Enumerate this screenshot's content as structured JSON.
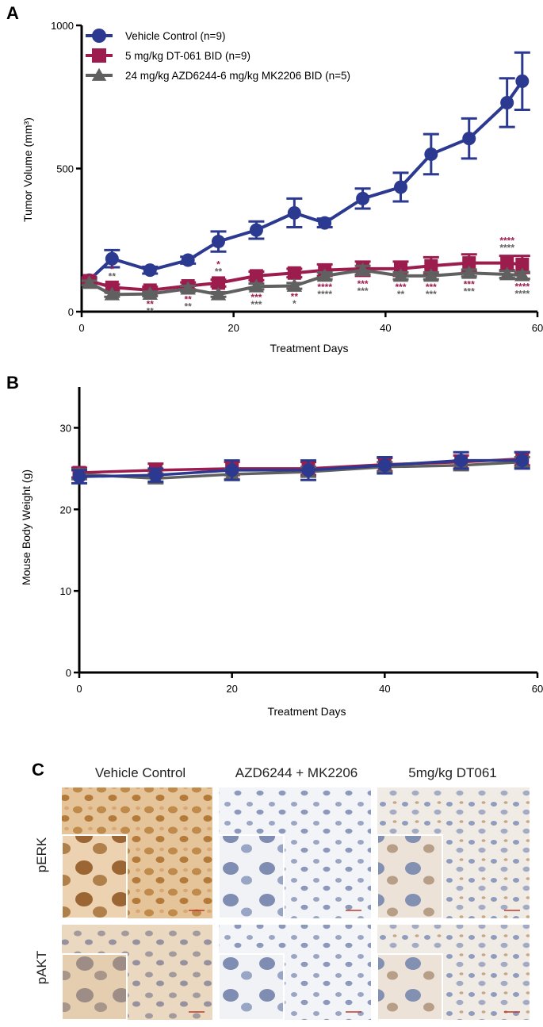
{
  "chart_data": [
    {
      "panel": "A",
      "type": "line",
      "xlabel": "Treatment Days",
      "ylabel": "Tumor Volume (mm³)",
      "xlim": [
        0,
        60
      ],
      "ylim": [
        0,
        1000
      ],
      "xticks": [
        0,
        20,
        40,
        60
      ],
      "yticks": [
        0,
        500,
        1000
      ],
      "grid": false,
      "legend_position": "top-left",
      "series": [
        {
          "name": "Vehicle Control (n=9)",
          "color": "#2b3990",
          "marker": "circle",
          "x": [
            1,
            4,
            9,
            14,
            18,
            23,
            28,
            32,
            37,
            42,
            46,
            51,
            56,
            58
          ],
          "y": [
            110,
            185,
            145,
            180,
            245,
            285,
            345,
            310,
            395,
            435,
            550,
            605,
            730,
            805
          ],
          "err": [
            10,
            30,
            12,
            12,
            35,
            30,
            50,
            15,
            35,
            50,
            70,
            70,
            85,
            100
          ]
        },
        {
          "name": "5 mg/kg DT-061 BID (n=9)",
          "color": "#9c1c4e",
          "marker": "square",
          "x": [
            1,
            4,
            9,
            14,
            18,
            23,
            28,
            32,
            37,
            42,
            46,
            51,
            56,
            58
          ],
          "y": [
            108,
            85,
            75,
            90,
            100,
            125,
            135,
            145,
            150,
            150,
            160,
            170,
            170,
            165
          ],
          "err": [
            8,
            10,
            12,
            12,
            12,
            15,
            15,
            20,
            25,
            25,
            30,
            30,
            25,
            30
          ]
        },
        {
          "name": "24 mg/kg AZD6244-6 mg/kg MK2206 BID (n=5)",
          "color": "#606060",
          "marker": "triangle",
          "x": [
            1,
            4,
            9,
            14,
            18,
            23,
            28,
            32,
            37,
            42,
            46,
            51,
            56,
            58
          ],
          "y": [
            100,
            60,
            62,
            80,
            60,
            88,
            90,
            125,
            145,
            125,
            125,
            135,
            130,
            127
          ],
          "err": [
            8,
            8,
            8,
            10,
            8,
            10,
            10,
            12,
            15,
            12,
            12,
            12,
            12,
            12
          ]
        }
      ],
      "annotations": [
        {
          "x": 4,
          "above": [
            {
              "t": "*",
              "s": 1
            },
            {
              "t": "**",
              "s": 2
            }
          ],
          "below": []
        },
        {
          "x": 9,
          "above": [],
          "below": [
            {
              "t": "**",
              "s": 1
            },
            {
              "t": "**",
              "s": 2
            }
          ]
        },
        {
          "x": 14,
          "above": [],
          "below": [
            {
              "t": "**",
              "s": 1
            },
            {
              "t": "**",
              "s": 2
            }
          ]
        },
        {
          "x": 18,
          "above": [
            {
              "t": "*",
              "s": 1
            },
            {
              "t": "**",
              "s": 2
            }
          ],
          "below": []
        },
        {
          "x": 23,
          "above": [],
          "below": [
            {
              "t": "***",
              "s": 1
            },
            {
              "t": "***",
              "s": 2
            }
          ]
        },
        {
          "x": 28,
          "above": [],
          "below": [
            {
              "t": "**",
              "s": 1
            },
            {
              "t": "*",
              "s": 2
            }
          ]
        },
        {
          "x": 32,
          "above": [],
          "below": [
            {
              "t": "****",
              "s": 1
            },
            {
              "t": "****",
              "s": 2
            }
          ]
        },
        {
          "x": 37,
          "above": [],
          "below": [
            {
              "t": "***",
              "s": 1
            },
            {
              "t": "***",
              "s": 2
            }
          ]
        },
        {
          "x": 42,
          "above": [],
          "below": [
            {
              "t": "***",
              "s": 1
            },
            {
              "t": "**",
              "s": 2
            }
          ]
        },
        {
          "x": 46,
          "above": [],
          "below": [
            {
              "t": "***",
              "s": 1
            },
            {
              "t": "***",
              "s": 2
            }
          ]
        },
        {
          "x": 51,
          "above": [],
          "below": [
            {
              "t": "***",
              "s": 1
            },
            {
              "t": "***",
              "s": 2
            }
          ]
        },
        {
          "x": 56,
          "above": [
            {
              "t": "****",
              "s": 1
            },
            {
              "t": "****",
              "s": 2
            }
          ],
          "below": []
        },
        {
          "x": 58,
          "above": [],
          "below": [
            {
              "t": "****",
              "s": 1
            },
            {
              "t": "****",
              "s": 2
            }
          ]
        }
      ]
    },
    {
      "panel": "B",
      "type": "line",
      "xlabel": "Treatment Days",
      "ylabel": "Mouse Body Weight (g)",
      "xlim": [
        0,
        60
      ],
      "ylim": [
        0,
        35
      ],
      "xticks": [
        0,
        20,
        40,
        60
      ],
      "yticks": [
        0,
        10,
        20,
        30
      ],
      "grid": false,
      "series": [
        {
          "color": "#9c1c4e",
          "marker": "square",
          "x": [
            0,
            10,
            20,
            30,
            40,
            50,
            58
          ],
          "y": [
            24.5,
            24.8,
            25.0,
            25.0,
            25.5,
            25.8,
            26.2
          ],
          "err": [
            0.6,
            0.8,
            0.8,
            0.8,
            0.8,
            0.8,
            0.8
          ]
        },
        {
          "color": "#606060",
          "marker": "triangle",
          "x": [
            0,
            10,
            20,
            30,
            40,
            50,
            58
          ],
          "y": [
            24.3,
            23.8,
            24.3,
            24.6,
            25.2,
            25.4,
            25.8
          ],
          "err": [
            0.6,
            0.6,
            0.6,
            0.6,
            0.6,
            0.6,
            0.6
          ]
        },
        {
          "color": "#2b3990",
          "marker": "circle",
          "x": [
            0,
            10,
            20,
            30,
            40,
            50,
            58
          ],
          "y": [
            24.0,
            24.2,
            24.8,
            24.8,
            25.4,
            26.0,
            26.0
          ],
          "err": [
            0.8,
            0.8,
            1.2,
            1.2,
            1.0,
            1.0,
            1.0
          ]
        }
      ]
    }
  ],
  "panel_c": {
    "label": "C",
    "columns": [
      "Vehicle Control",
      "AZD6244 + MK2206",
      "5mg/kg DT061"
    ],
    "rows": [
      "pERK",
      "pAKT"
    ],
    "tile_colors": {
      "vehicle": "#e8c9a0",
      "combo": "#eef1f6",
      "dt061": "#efe9e4"
    }
  },
  "panel_labels": {
    "a": "A",
    "b": "B"
  }
}
